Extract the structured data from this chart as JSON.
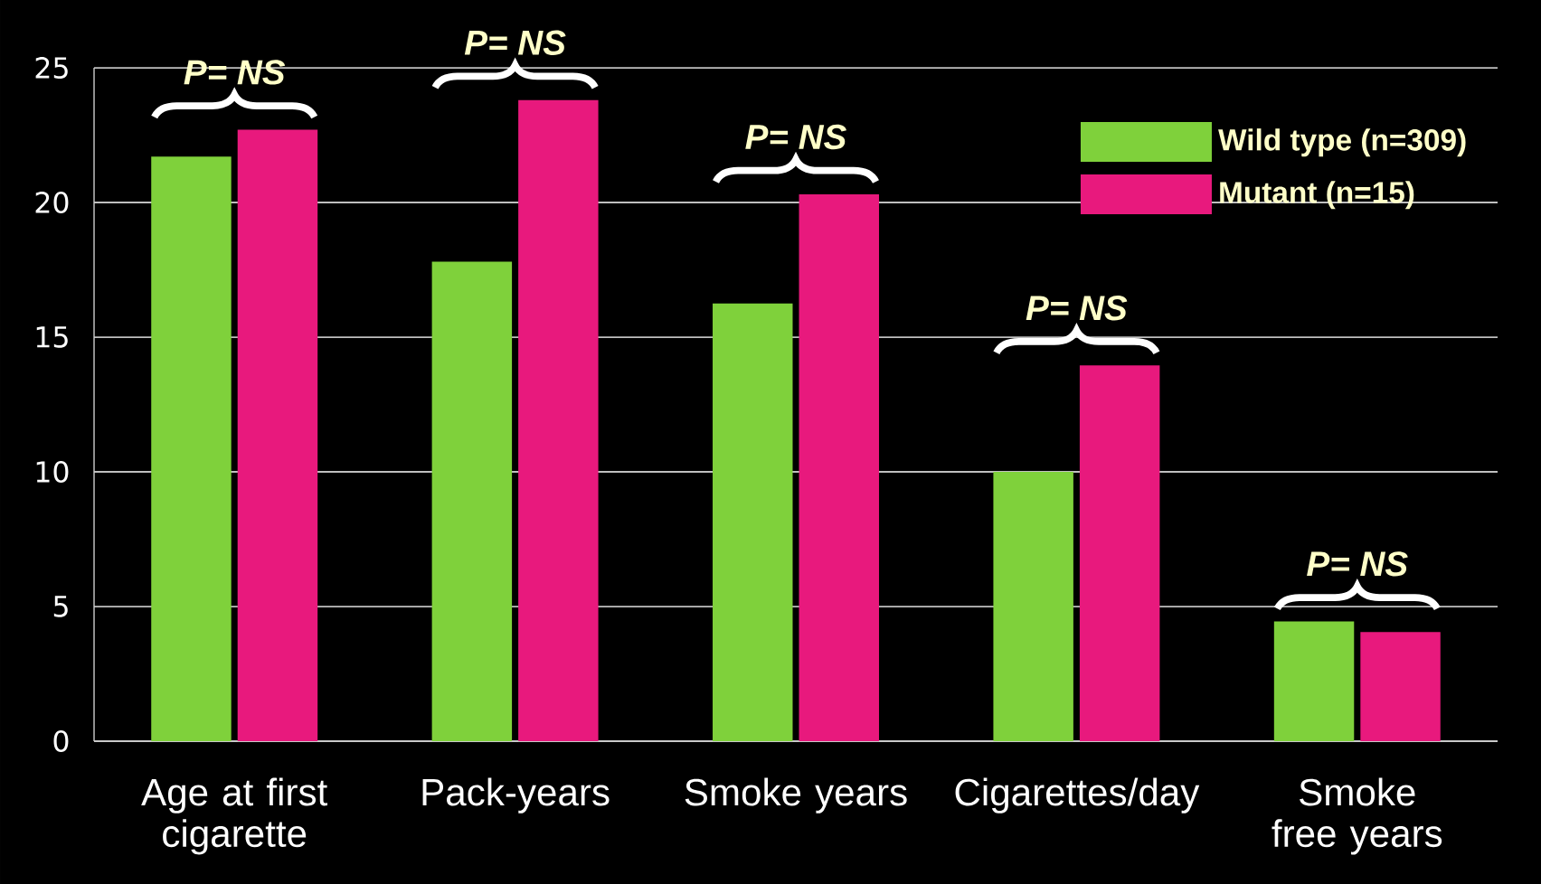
{
  "chart_data": {
    "type": "bar",
    "categories": [
      "Age at first cigarette",
      "Pack-years",
      "Smoke years",
      "Cigarettes/day",
      "Smoke free years"
    ],
    "series": [
      {
        "name": "Wild type  (n=309)",
        "color": "#7fd13b",
        "values": [
          21.7,
          17.8,
          16.25,
          10.0,
          4.45
        ]
      },
      {
        "name": "Mutant (n=15)",
        "color": "#e8197d",
        "values": [
          22.7,
          23.8,
          20.3,
          13.95,
          4.05
        ]
      }
    ],
    "ylim": [
      0,
      25
    ],
    "yticks": [
      0,
      5,
      10,
      15,
      20,
      25
    ],
    "grid": "y",
    "legend": "top right",
    "annotations": [
      "P= NS",
      "P= NS",
      "P= NS",
      "P= NS",
      "P= NS"
    ]
  }
}
